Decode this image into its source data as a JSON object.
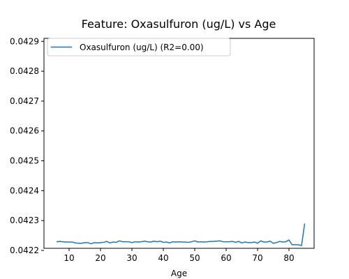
{
  "chart_data": {
    "type": "line",
    "title": "Feature: Oxasulfuron (ug/L) vs Age",
    "xlabel": "Age",
    "ylabel": "",
    "xlim": [
      2,
      88
    ],
    "ylim": [
      0.042207,
      0.04291
    ],
    "x_ticks": [
      10,
      20,
      30,
      40,
      50,
      60,
      70,
      80
    ],
    "y_ticks": [
      0.0422,
      0.0423,
      0.0424,
      0.0425,
      0.0426,
      0.0427,
      0.0428,
      0.0429
    ],
    "y_tick_labels": [
      "0.0422",
      "0.0423",
      "0.0424",
      "0.0425",
      "0.0426",
      "0.0427",
      "0.0428",
      "0.0429"
    ],
    "legend_position": "top-left",
    "grid": false,
    "series": [
      {
        "name": "Oxasulfuron (ug/L) (R2=0.00)",
        "color": "#1f77b4",
        "x": [
          6,
          7,
          8,
          9,
          10,
          11,
          12,
          13,
          14,
          15,
          16,
          17,
          18,
          19,
          20,
          21,
          22,
          23,
          24,
          25,
          26,
          27,
          28,
          29,
          30,
          31,
          32,
          33,
          34,
          35,
          36,
          37,
          38,
          39,
          40,
          41,
          42,
          43,
          44,
          45,
          46,
          47,
          48,
          49,
          50,
          51,
          52,
          53,
          54,
          55,
          56,
          57,
          58,
          59,
          60,
          61,
          62,
          63,
          64,
          65,
          66,
          67,
          68,
          69,
          70,
          71,
          72,
          73,
          74,
          75,
          76,
          77,
          78,
          79,
          80,
          81,
          82,
          83,
          84,
          85
        ],
        "y": [
          0.042229,
          0.04223,
          0.042229,
          0.042228,
          0.042228,
          0.042228,
          0.042225,
          0.042224,
          0.042224,
          0.042226,
          0.042226,
          0.042222,
          0.042226,
          0.042225,
          0.042226,
          0.042227,
          0.04223,
          0.042225,
          0.042228,
          0.042227,
          0.042232,
          0.042229,
          0.042229,
          0.042229,
          0.042226,
          0.042229,
          0.042228,
          0.042229,
          0.042231,
          0.042229,
          0.042228,
          0.042231,
          0.042229,
          0.042231,
          0.042227,
          0.042228,
          0.042225,
          0.042229,
          0.042228,
          0.042229,
          0.042228,
          0.042228,
          0.042227,
          0.042229,
          0.042232,
          0.042228,
          0.042229,
          0.042228,
          0.042229,
          0.04223,
          0.04223,
          0.042231,
          0.042232,
          0.042229,
          0.042229,
          0.042229,
          0.04223,
          0.042227,
          0.04223,
          0.042225,
          0.042228,
          0.042226,
          0.042226,
          0.042228,
          0.042224,
          0.042232,
          0.042228,
          0.042228,
          0.042231,
          0.042224,
          0.042226,
          0.04223,
          0.042228,
          0.042229,
          0.042235,
          0.042219,
          0.042219,
          0.042219,
          0.042216,
          0.04229
        ]
      }
    ]
  }
}
